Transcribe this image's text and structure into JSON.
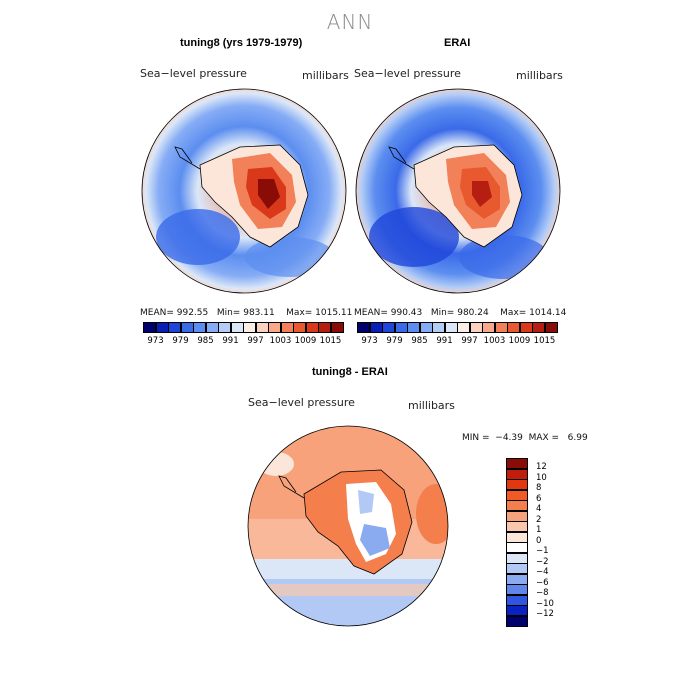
{
  "figure": {
    "title": "ANN",
    "panels": [
      {
        "title": "tuning8 (yrs 1979-1979)",
        "variable_label": "Sea−level pressure",
        "units_label": "millibars",
        "stats": {
          "mean": "992.55",
          "min": "983.11",
          "max": "1015.11"
        }
      },
      {
        "title": "ERAI",
        "variable_label": "Sea−level pressure",
        "units_label": "millibars",
        "stats": {
          "mean": "990.43",
          "min": "980.24",
          "max": "1014.14"
        }
      }
    ],
    "diff_panel": {
      "title": "tuning8 - ERAI",
      "variable_label": "Sea−level pressure",
      "units_label": "millibars",
      "stats_text": "MIN =  −4.39  MAX =   6.99"
    },
    "colorbar_main": {
      "tick_labels": [
        "973",
        "979",
        "985",
        "991",
        "997",
        "1003",
        "1009",
        "1015"
      ],
      "colors": [
        "#00006e",
        "#0a1fb3",
        "#1f46d9",
        "#3a6ae8",
        "#5c8ef0",
        "#86acf5",
        "#b4cdf7",
        "#dbe7f8",
        "#fbeee6",
        "#fbd2bf",
        "#f9a98a",
        "#f28058",
        "#e8592f",
        "#d9381a",
        "#b51e10",
        "#8a0c06"
      ]
    },
    "colorbar_diff": {
      "tick_labels": [
        "12",
        "10",
        "8",
        "6",
        "4",
        "2",
        "1",
        "0",
        "−1",
        "−2",
        "−4",
        "−6",
        "−8",
        "−10",
        "−12"
      ],
      "colors": [
        "#8a0c06",
        "#c01d0c",
        "#e3380f",
        "#f15a25",
        "#f47e4c",
        "#f7a27b",
        "#f9c7ad",
        "#fbe6d9",
        "#ffffff",
        "#dbe6f7",
        "#b1c9f4",
        "#8aabf0",
        "#5f87ea",
        "#2f56de",
        "#0a22c2",
        "#00006e"
      ]
    }
  }
}
